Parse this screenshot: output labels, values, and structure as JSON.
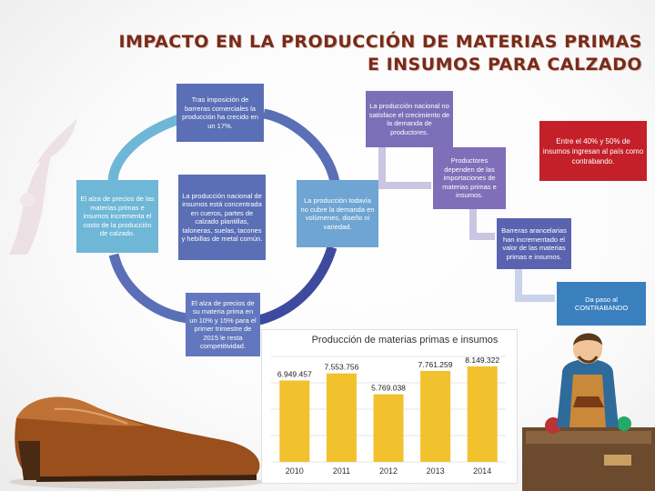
{
  "title": {
    "line1": "IMPACTO EN LA PRODUCCIÓN DE MATERIAS PRIMAS",
    "line2": "E INSUMOS PARA CALZADO"
  },
  "nodes": {
    "top": "Tras imposición de barreras comerciales la producción ha crecido en un 17%.",
    "left": "El alza de precios de las materias primas e insumos incrementa el costo de la producción de calzado.",
    "center": "La producción nacional de insumos está concentrada en cueros, partes de calzado plantillas, taloneras, suelas, tacones y hebillas de metal común.",
    "bottom": "El alza de precios de su materia prima en un 10% y 15% para el primer trimestre de 2015 le resta competitividad.",
    "mid": "La producción todavía no cubre la demanda en volúmenes, diseño ni variedad.",
    "right1": "La producción nacional no satisface el crecimiento de la demanda de productores.",
    "right2": "Productores dependen de las importaciones de materias primas e insumos.",
    "red": "Entre el 40% y 50% de insumos ingresan al país como contrabando.",
    "right3": "Barreras arancelarias han incrementado el valor de las materias primas e insumos.",
    "right4": "Da paso al CONTRABANDO"
  },
  "colors": {
    "title": "#7a2a1a",
    "bar": "#f2c12e",
    "red_box": "#c4202a",
    "blue_box": "#5a6fb6",
    "light_blue_box": "#6fb7d7"
  },
  "chart_data": {
    "type": "bar",
    "title": "Producción de materias primas e insumos",
    "categories": [
      "2010",
      "2011",
      "2012",
      "2013",
      "2014"
    ],
    "values": [
      6949457,
      7553756,
      5769038,
      7761259,
      8149322
    ],
    "labels": [
      "6.949.457",
      "7.553.756",
      "5.769.038",
      "7.761.259",
      "8.149.322"
    ],
    "ylim": [
      0,
      9000000
    ],
    "grid": true,
    "legend": "none"
  }
}
